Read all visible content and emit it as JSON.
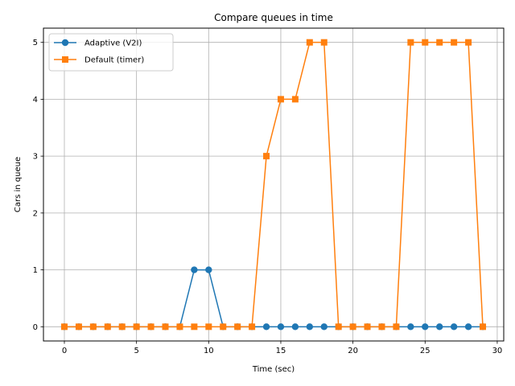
{
  "chart_data": {
    "type": "line",
    "title": "Compare queues in time",
    "xlabel": "Time (sec)",
    "ylabel": "Cars in queue",
    "xlim": [
      -1.45,
      30.45
    ],
    "ylim": [
      -0.25,
      5.25
    ],
    "xticks": [
      0,
      5,
      10,
      15,
      20,
      25,
      30
    ],
    "yticks": [
      0,
      1,
      2,
      3,
      4,
      5
    ],
    "grid": true,
    "legend_position": "upper-left",
    "x": [
      0,
      1,
      2,
      3,
      4,
      5,
      6,
      7,
      8,
      9,
      10,
      11,
      12,
      13,
      14,
      15,
      16,
      17,
      18,
      19,
      20,
      21,
      22,
      23,
      24,
      25,
      26,
      27,
      28,
      29
    ],
    "series": [
      {
        "name": "Adaptive (V2I)",
        "color": "#1f77b4",
        "marker": "circle",
        "values": [
          0,
          0,
          0,
          0,
          0,
          0,
          0,
          0,
          0,
          1,
          1,
          0,
          0,
          0,
          0,
          0,
          0,
          0,
          0,
          0,
          0,
          0,
          0,
          0,
          0,
          0,
          0,
          0,
          0,
          0
        ]
      },
      {
        "name": "Default (timer)",
        "color": "#ff7f0e",
        "marker": "square",
        "values": [
          0,
          0,
          0,
          0,
          0,
          0,
          0,
          0,
          0,
          0,
          0,
          0,
          0,
          0,
          3,
          4,
          4,
          5,
          5,
          0,
          0,
          0,
          0,
          0,
          5,
          5,
          5,
          5,
          5,
          0
        ]
      }
    ]
  }
}
